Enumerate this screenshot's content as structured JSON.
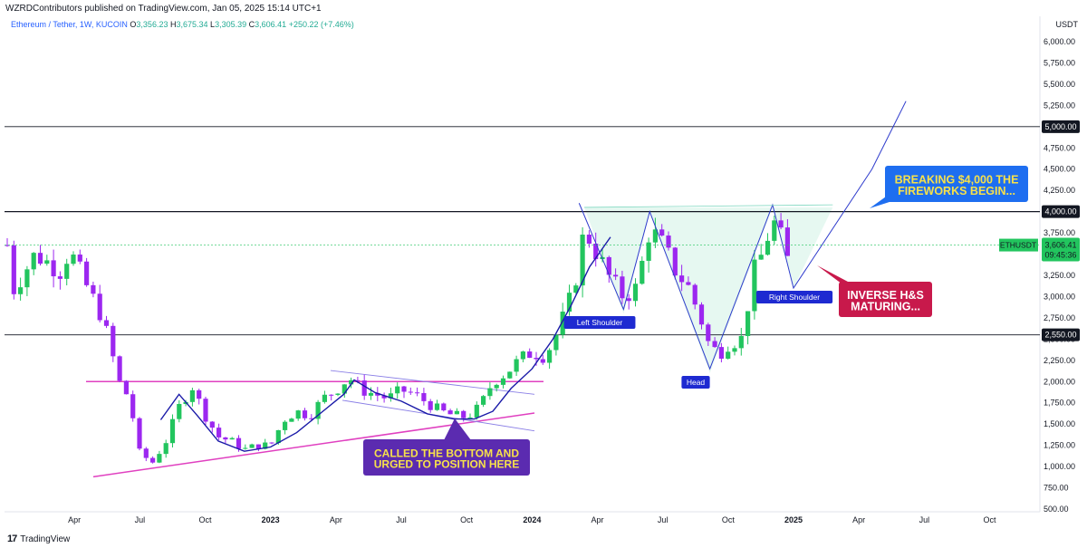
{
  "header": {
    "published": "WZRDContributors published on TradingView.com, Jan 05, 2025 15:14 UTC+1"
  },
  "legend": {
    "symbol": "Ethereum / Tether, 1W, KUCOIN",
    "o_label": "O",
    "o": "3,356.23",
    "h_label": "H",
    "h": "3,675.34",
    "l_label": "L",
    "l": "3,305.39",
    "c_label": "C",
    "c": "3,606.41",
    "change": "+250.22 (+7.46%)"
  },
  "currency": "USDT",
  "footer": {
    "logo": "17",
    "brand": "TradingView"
  },
  "colors": {
    "up": "#22c55e",
    "down": "#9c27f0",
    "ma": "#1a1aa8",
    "pink": "#e040c0",
    "priceTag": "#22c55e"
  },
  "chart_data": {
    "type": "candlestick",
    "title": "Ethereum / Tether, 1W, KUCOIN",
    "ylabel": "USDT",
    "ylim": [
      500,
      6000
    ],
    "y_ticks": [
      "6,000.00",
      "5,750.00",
      "5,500.00",
      "5,250.00",
      "5,000.00",
      "4,750.00",
      "4,500.00",
      "4,250.00",
      "4,000.00",
      "3,750.00",
      "3,500.00",
      "3,250.00",
      "3,000.00",
      "2,750.00",
      "2,500.00",
      "2,250.00",
      "2,000.00",
      "1,750.00",
      "1,500.00",
      "1,250.00",
      "1,000.00",
      "750.00",
      "500.00"
    ],
    "y_tick_values": [
      6000,
      5750,
      5500,
      5250,
      5000,
      4750,
      4500,
      4250,
      4000,
      3750,
      3500,
      3250,
      3000,
      2750,
      2500,
      2250,
      2000,
      1750,
      1500,
      1250,
      1000,
      750,
      500
    ],
    "x_ticks": [
      {
        "label": "Apr",
        "t": 2022.25,
        "bold": false
      },
      {
        "label": "Jul",
        "t": 2022.5,
        "bold": false
      },
      {
        "label": "Oct",
        "t": 2022.75,
        "bold": false
      },
      {
        "label": "2023",
        "t": 2023.0,
        "bold": true
      },
      {
        "label": "Apr",
        "t": 2023.25,
        "bold": false
      },
      {
        "label": "Jul",
        "t": 2023.5,
        "bold": false
      },
      {
        "label": "Oct",
        "t": 2023.75,
        "bold": false
      },
      {
        "label": "2024",
        "t": 2024.0,
        "bold": true
      },
      {
        "label": "Apr",
        "t": 2024.25,
        "bold": false
      },
      {
        "label": "Jul",
        "t": 2024.5,
        "bold": false
      },
      {
        "label": "Oct",
        "t": 2024.75,
        "bold": false
      },
      {
        "label": "2025",
        "t": 2025.0,
        "bold": true
      },
      {
        "label": "Apr",
        "t": 2025.25,
        "bold": false
      },
      {
        "label": "Jul",
        "t": 2025.5,
        "bold": false
      },
      {
        "label": "Oct",
        "t": 2025.75,
        "bold": false
      }
    ],
    "horizontal_levels": [
      {
        "value": 5000,
        "label": "5,000.00"
      },
      {
        "value": 4000,
        "label": "4,000.00"
      },
      {
        "value": 2550,
        "label": "2,550.00"
      }
    ],
    "last_price": {
      "symbol": "ETHUSDT",
      "price": "3,606.41",
      "countdown": "09:45:36",
      "value": 3606.41
    },
    "path": [
      [
        2022.0,
        3000
      ],
      [
        2022.1,
        3500
      ],
      [
        2022.2,
        3300
      ],
      [
        2022.23,
        3550
      ],
      [
        2022.3,
        3100
      ],
      [
        2022.35,
        2800
      ],
      [
        2022.38,
        2500
      ],
      [
        2022.42,
        2000
      ],
      [
        2022.46,
        1800
      ],
      [
        2022.5,
        1150
      ],
      [
        2022.55,
        1050
      ],
      [
        2022.6,
        1300
      ],
      [
        2022.65,
        1700
      ],
      [
        2022.7,
        1950
      ],
      [
        2022.75,
        1600
      ],
      [
        2022.8,
        1350
      ],
      [
        2022.85,
        1300
      ],
      [
        2022.9,
        1200
      ],
      [
        2022.95,
        1250
      ],
      [
        2023.0,
        1250
      ],
      [
        2023.05,
        1550
      ],
      [
        2023.1,
        1650
      ],
      [
        2023.15,
        1600
      ],
      [
        2023.2,
        1800
      ],
      [
        2023.25,
        1900
      ],
      [
        2023.3,
        2050
      ],
      [
        2023.35,
        1900
      ],
      [
        2023.4,
        1850
      ],
      [
        2023.45,
        1800
      ],
      [
        2023.5,
        1900
      ],
      [
        2023.55,
        1850
      ],
      [
        2023.6,
        1750
      ],
      [
        2023.65,
        1650
      ],
      [
        2023.7,
        1600
      ],
      [
        2023.75,
        1580
      ],
      [
        2023.8,
        1700
      ],
      [
        2023.85,
        2000
      ],
      [
        2023.9,
        2100
      ],
      [
        2023.95,
        2250
      ],
      [
        2024.0,
        2350
      ],
      [
        2024.05,
        2300
      ],
      [
        2024.1,
        2600
      ],
      [
        2024.15,
        3000
      ],
      [
        2024.18,
        3400
      ],
      [
        2024.2,
        3800
      ],
      [
        2024.25,
        3500
      ],
      [
        2024.3,
        3200
      ],
      [
        2024.35,
        3000
      ],
      [
        2024.4,
        3100
      ],
      [
        2024.45,
        3800
      ],
      [
        2024.5,
        3600
      ],
      [
        2024.55,
        3300
      ],
      [
        2024.6,
        3100
      ],
      [
        2024.65,
        2700
      ],
      [
        2024.68,
        2400
      ],
      [
        2024.72,
        2350
      ],
      [
        2024.75,
        2450
      ],
      [
        2024.8,
        2500
      ],
      [
        2024.85,
        3300
      ],
      [
        2024.88,
        3500
      ],
      [
        2024.92,
        3900
      ],
      [
        2024.95,
        3700
      ],
      [
        2024.98,
        3400
      ],
      [
        2025.0,
        3606
      ]
    ],
    "annotations": [
      {
        "text": "BREAKING $4,000 THE FIREWORKS BEGIN...",
        "lines": [
          "BREAKING $4,000 THE",
          "FIREWORKS BEGIN..."
        ]
      },
      {
        "text": "INVERSE H&S MATURING...",
        "lines": [
          "INVERSE H&S",
          "MATURING..."
        ]
      },
      {
        "text": "CALLED THE BOTTOM AND URGED TO POSITION HERE",
        "lines": [
          "CALLED THE BOTTOM AND",
          "URGED TO POSITION HERE"
        ]
      },
      {
        "text": "Left Shoulder",
        "lines": [
          "Left Shoulder"
        ]
      },
      {
        "text": "Head",
        "lines": [
          "Head"
        ]
      },
      {
        "text": "Right Shoulder",
        "lines": [
          "Right Shoulder"
        ]
      }
    ]
  }
}
